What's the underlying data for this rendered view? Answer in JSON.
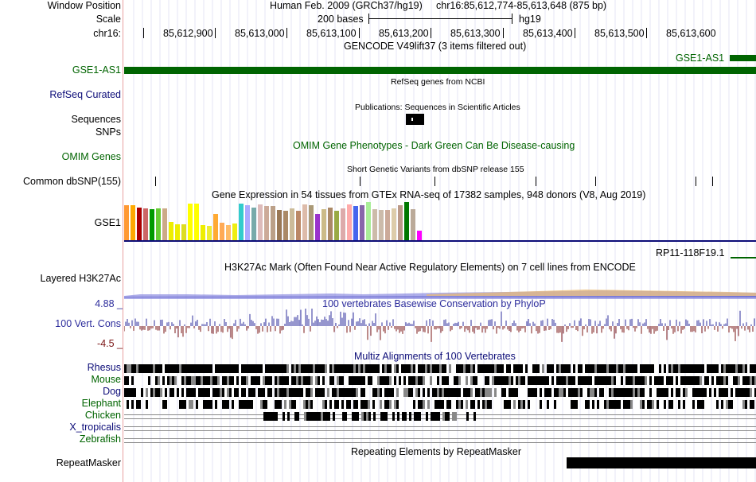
{
  "header": {
    "window_position_label": "Window Position",
    "scale_label": "Scale",
    "chrom_label": "chr16:",
    "assembly": "Human Feb. 2009 (GRCh37/hg19)",
    "position": "chr16:85,612,774-85,613,648 (875 bp)",
    "scale_text": "200 bases",
    "db": "hg19",
    "ticks": [
      "85,612,900",
      "85,613,000",
      "85,613,100",
      "85,613,200",
      "85,613,300",
      "85,613,400",
      "85,613,500",
      "85,613,600"
    ]
  },
  "tracks": {
    "gencode": {
      "title": "GENCODE V49lift37 (3 items filtered out)",
      "label": "GSE1-AS1",
      "item": "GSE1-AS1",
      "color": "#006400"
    },
    "refseq": {
      "title": "RefSeq genes from NCBI",
      "label": "RefSeq Curated",
      "color": "#0c0c78"
    },
    "publications": {
      "title": "Publications: Sequences in Scientific Articles",
      "label1": "Sequences",
      "label2": "SNPs"
    },
    "omim": {
      "title": "OMIM Gene Phenotypes - Dark Green Can Be Disease-causing",
      "label": "OMIM Genes",
      "color": "#006400"
    },
    "dbsnp": {
      "title": "Short Genetic Variants from dbSNP release 155",
      "label": "Common dbSNP(155)"
    },
    "gtex": {
      "title": "Gene Expression in 54 tissues from GTEx RNA-seq of 17382 samples, 948 donors (V8, Aug 2019)",
      "label": "GSE1",
      "item": "RP11-118F19.1",
      "bar_colors": [
        "#FF9933",
        "#FFAA00",
        "#AA0000",
        "#CC6666",
        "#009900",
        "#66CC33",
        "#CCAA88",
        "#EEEE00",
        "#EEEE00",
        "#DDDD22",
        "#FFFF00",
        "#FFFF00",
        "#EEEE00",
        "#EEEE33",
        "#FFAA33",
        "#FFAA55",
        "#FFBB66",
        "#EEEE11",
        "#33CCCC",
        "#AAAAFF",
        "#77AAAA",
        "#DDBBBB",
        "#CCAA99",
        "#BBA088",
        "#997755",
        "#AA8866",
        "#CCBB99",
        "#BB8866",
        "#DDBBAA",
        "#AA9977",
        "#9933CC",
        "#CCBB88",
        "#AA8866",
        "#99AA44",
        "#DDAAAA",
        "#FFAAAA",
        "#4466EE",
        "#8866AA",
        "#AAEE99",
        "#CCBBAA",
        "#CCBBAA",
        "#CCAA99",
        "#DDCCAA",
        "#BB9988",
        "#007700",
        "#BBAA99",
        "#FF00FF"
      ],
      "bar_values": [
        44,
        44,
        41,
        40,
        39,
        40,
        40,
        23,
        20,
        20,
        46,
        46,
        19,
        18,
        33,
        22,
        19,
        21,
        46,
        44,
        41,
        45,
        43,
        43,
        38,
        37,
        40,
        37,
        45,
        44,
        33,
        39,
        41,
        37,
        40,
        45,
        43,
        44,
        48,
        39,
        38,
        38,
        40,
        44,
        48,
        39,
        12
      ]
    },
    "h3k27ac": {
      "title": "H3K27Ac Mark (Often Found Near Active Regulatory Elements) on 7 cell lines from ENCODE",
      "label": "Layered H3K27Ac"
    },
    "cons": {
      "title": "100 vertebrates Basewise Conservation by PhyloP",
      "label": "100 Vert. Cons",
      "ymax": "4.88 _",
      "ymin": "-4.5 _",
      "color_up": "#2c2c9c",
      "color_down": "#7a1414"
    },
    "multiz": {
      "title": "Multiz Alignments of 100 Vertebrates",
      "species": [
        "Rhesus",
        "Mouse",
        "Dog",
        "Elephant",
        "Chicken",
        "X_tropicalis",
        "Zebrafish"
      ]
    },
    "rmsk": {
      "title": "Repeating Elements by RepeatMasker",
      "label": "RepeatMasker"
    }
  }
}
